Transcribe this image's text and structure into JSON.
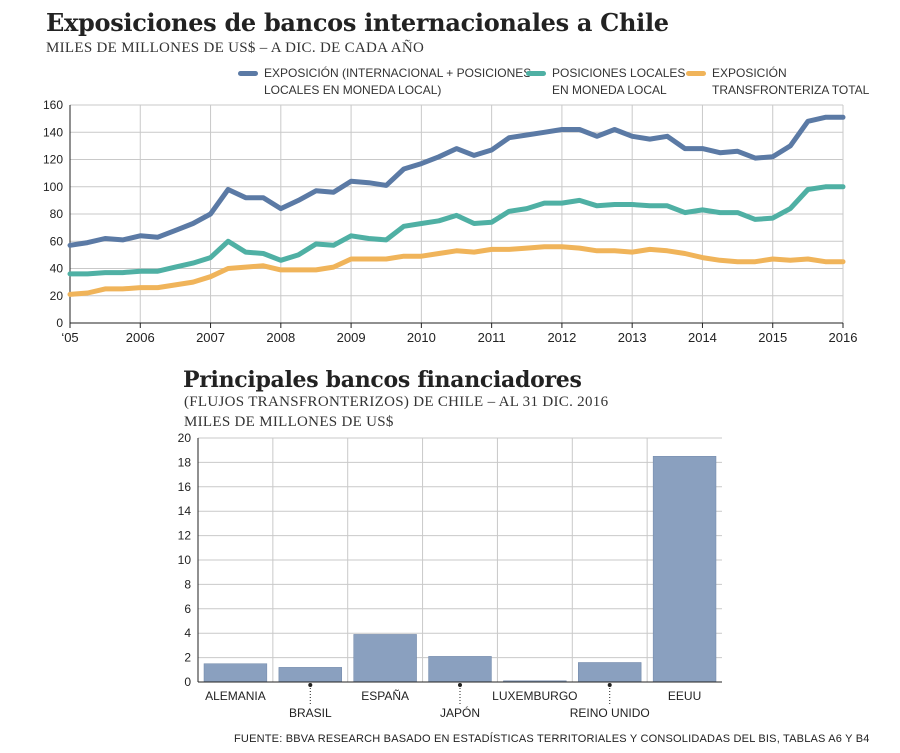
{
  "line_chart": {
    "title": "Exposiciones de bancos internacionales a Chile",
    "subtitle": "MILES DE MILLONES DE US$ – A DIC. DE CADA AÑO",
    "legend": [
      {
        "label": "EXPOSICIÓN (INTERNACIONAL + POSICIONES\nLOCALES EN MONEDA LOCAL)",
        "color": "#5b7aa5"
      },
      {
        "label": "POSICIONES LOCALES\nEN MONEDA LOCAL",
        "color": "#4fb0a4"
      },
      {
        "label": "EXPOSICIÓN\nTRANSFRONTERIZA TOTAL",
        "color": "#f0b45a"
      }
    ],
    "x_tick_labels": [
      "‘05",
      "2006",
      "2007",
      "2008",
      "2009",
      "2010",
      "2011",
      "2012",
      "2013",
      "2014",
      "2015",
      "2016"
    ],
    "y_tick_labels": [
      "0",
      "20",
      "40",
      "60",
      "80",
      "100",
      "120",
      "140",
      "160"
    ]
  },
  "bar_chart": {
    "title": "Principales bancos financiadores",
    "subtitle": "(FLUJOS TRANSFRONTERIZOS) DE CHILE – AL 31 DIC. 2016",
    "units": "MILES DE MILLONES DE US$",
    "y_tick_labels": [
      "0",
      "2",
      "4",
      "6",
      "8",
      "10",
      "12",
      "14",
      "16",
      "18",
      "20"
    ]
  },
  "source": "FUENTE: BBVA RESEARCH BASADO EN ESTADÍSTICAS TERRITORIALES Y CONSOLIDADAS DEL BIS, TABLAS A6 Y B4",
  "chart_data": [
    {
      "type": "line",
      "title": "Exposiciones de bancos internacionales a Chile",
      "subtitle": "MILES DE MILLONES DE US$ – A DIC. DE CADA AÑO",
      "xlabel": "",
      "ylabel": "",
      "xlim": [
        2005,
        2016
      ],
      "ylim": [
        0,
        160
      ],
      "y_ticks": [
        0,
        20,
        40,
        60,
        80,
        100,
        120,
        140,
        160
      ],
      "grid": true,
      "legend_position": "top",
      "x": [
        2005.0,
        2005.25,
        2005.5,
        2005.75,
        2006.0,
        2006.25,
        2006.5,
        2006.75,
        2007.0,
        2007.25,
        2007.5,
        2007.75,
        2008.0,
        2008.25,
        2008.5,
        2008.75,
        2009.0,
        2009.25,
        2009.5,
        2009.75,
        2010.0,
        2010.25,
        2010.5,
        2010.75,
        2011.0,
        2011.25,
        2011.5,
        2011.75,
        2012.0,
        2012.25,
        2012.5,
        2012.75,
        2013.0,
        2013.25,
        2013.5,
        2013.75,
        2014.0,
        2014.25,
        2014.5,
        2014.75,
        2015.0,
        2015.25,
        2015.5,
        2015.75,
        2016.0
      ],
      "series": [
        {
          "name": "EXPOSICIÓN (INTERNACIONAL + POSICIONES LOCALES EN MONEDA LOCAL)",
          "color": "#5b7aa5",
          "values": [
            57,
            59,
            62,
            61,
            64,
            63,
            68,
            73,
            80,
            98,
            92,
            92,
            84,
            90,
            97,
            96,
            104,
            103,
            101,
            113,
            117,
            122,
            128,
            123,
            127,
            136,
            138,
            140,
            142,
            142,
            137,
            142,
            137,
            135,
            137,
            128,
            128,
            125,
            126,
            121,
            122,
            130,
            148,
            151,
            151
          ]
        },
        {
          "name": "POSICIONES LOCALES EN MONEDA LOCAL",
          "color": "#4fb0a4",
          "values": [
            36,
            36,
            37,
            37,
            38,
            38,
            41,
            44,
            48,
            60,
            52,
            51,
            46,
            50,
            58,
            57,
            64,
            62,
            61,
            71,
            73,
            75,
            79,
            73,
            74,
            82,
            84,
            88,
            88,
            90,
            86,
            87,
            87,
            86,
            86,
            81,
            83,
            81,
            81,
            76,
            77,
            84,
            98,
            100,
            100
          ]
        },
        {
          "name": "EXPOSICIÓN TRANSFRONTERIZA TOTAL",
          "color": "#f0b45a",
          "values": [
            21,
            22,
            25,
            25,
            26,
            26,
            28,
            30,
            34,
            40,
            41,
            42,
            39,
            39,
            39,
            41,
            47,
            47,
            47,
            49,
            49,
            51,
            53,
            52,
            54,
            54,
            55,
            56,
            56,
            55,
            53,
            53,
            52,
            54,
            53,
            51,
            48,
            46,
            45,
            45,
            47,
            46,
            47,
            45,
            45
          ]
        }
      ]
    },
    {
      "type": "bar",
      "title": "Principales bancos financiadores",
      "subtitle": "(FLUJOS TRANSFRONTERIZOS) DE CHILE – AL 31 DIC. 2016",
      "ylabel": "MILES DE MILLONES DE US$",
      "xlabel": "",
      "ylim": [
        0,
        20
      ],
      "y_ticks": [
        0,
        2,
        4,
        6,
        8,
        10,
        12,
        14,
        16,
        18,
        20
      ],
      "grid": true,
      "color": "#8aa0bf",
      "categories": [
        "ALEMANIA",
        "BRASIL",
        "ESPAÑA",
        "JAPÓN",
        "LUXEMBURGO",
        "REINO UNIDO",
        "EEUU"
      ],
      "values": [
        1.5,
        1.2,
        3.9,
        2.1,
        0.1,
        1.6,
        18.5
      ]
    }
  ]
}
